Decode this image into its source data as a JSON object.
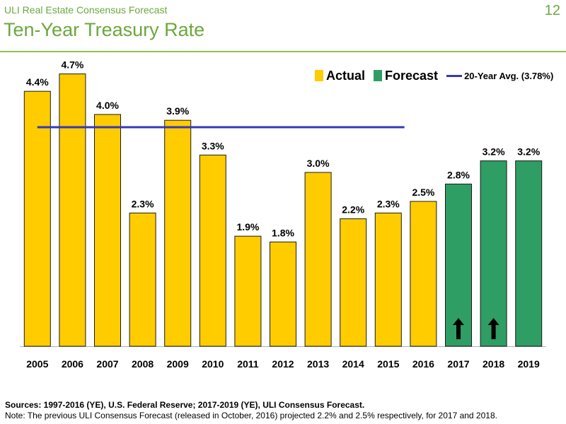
{
  "header": {
    "subtitle": "ULI Real Estate Consensus Forecast",
    "title": "Ten-Year Treasury Rate",
    "page_number": "12"
  },
  "legend": {
    "actual": "Actual",
    "forecast": "Forecast",
    "avg": "20-Year Avg. (3.78%)"
  },
  "colors": {
    "actual": "#ffcc00",
    "forecast": "#2e9e64",
    "avg_line": "#3538b8",
    "title_green": "#6aa83c"
  },
  "chart_data": {
    "type": "bar",
    "categories": [
      "2005",
      "2006",
      "2007",
      "2008",
      "2009",
      "2010",
      "2011",
      "2012",
      "2013",
      "2014",
      "2015",
      "2016",
      "2017",
      "2018",
      "2019"
    ],
    "series": [
      {
        "name": "Actual",
        "values": [
          4.4,
          4.7,
          4.0,
          2.3,
          3.9,
          3.3,
          1.9,
          1.8,
          3.0,
          2.2,
          2.3,
          2.5,
          null,
          null,
          null
        ],
        "labels": [
          "4.4%",
          "4.7%",
          "4.0%",
          "2.3%",
          "3.9%",
          "3.3%",
          "1.9%",
          "1.8%",
          "3.0%",
          "2.2%",
          "2.3%",
          "2.5%",
          "",
          "",
          ""
        ]
      },
      {
        "name": "Forecast",
        "values": [
          null,
          null,
          null,
          null,
          null,
          null,
          null,
          null,
          null,
          null,
          null,
          null,
          2.8,
          3.2,
          3.2
        ],
        "labels": [
          "",
          "",
          "",
          "",
          "",
          "",
          "",
          "",
          "",
          "",
          "",
          "",
          "2.8%",
          "3.2%",
          "3.2%"
        ]
      }
    ],
    "reference_line": {
      "name": "20-Year Avg. (3.78%)",
      "value": 3.78,
      "from": "2005",
      "to": "2015"
    },
    "up_arrows": [
      "2017",
      "2018"
    ],
    "ylim": [
      0,
      5
    ],
    "xlabel": "",
    "ylabel": "",
    "legend_position": "top-right",
    "grid": false
  },
  "footer": {
    "sources": "Sources: 1997-2016 (YE), U.S. Federal Reserve; 2017-2019 (YE), ULI Consensus Forecast.",
    "note": "Note: The previous ULI Consensus Forecast (released in October, 2016) projected 2.2% and 2.5% respectively, for 2017 and 2018."
  }
}
